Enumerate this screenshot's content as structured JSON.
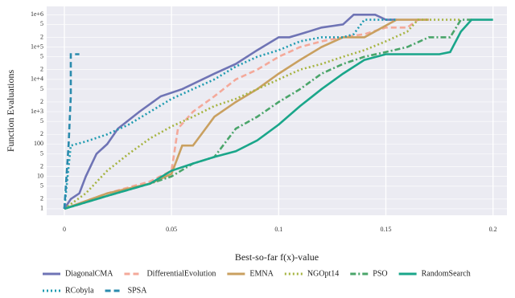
{
  "chart_data": {
    "type": "line",
    "x_label": "Best-so-far f(x)-value",
    "y_label": "Function Evaluations",
    "log_y": true,
    "grid": true,
    "legend": "bottom",
    "xlim": [
      -0.00825,
      0.2065
    ],
    "ylim": [
      0.63,
      1800000
    ],
    "xticks": [
      0,
      0.05,
      0.1,
      0.15,
      0.2
    ],
    "yticks": [
      1,
      2,
      5,
      10,
      {
        "value": 20,
        "label": "2"
      },
      {
        "value": 50,
        "label": "5"
      },
      100,
      {
        "value": 200,
        "label": "2"
      },
      {
        "value": 500,
        "label": "5"
      },
      {
        "value": 1000,
        "label": "1e+3"
      },
      {
        "value": 2000,
        "label": "2"
      },
      {
        "value": 5000,
        "label": "5"
      },
      {
        "value": 10000,
        "label": "1e+4"
      },
      {
        "value": 20000,
        "label": "2"
      },
      {
        "value": 50000,
        "label": "5"
      },
      {
        "value": 100000,
        "label": "1e+5"
      },
      {
        "value": 200000,
        "label": "2"
      },
      {
        "value": 500000,
        "label": "5"
      },
      {
        "value": 1000000,
        "label": "1e+6"
      }
    ],
    "series": [
      {
        "name": "DiagonalCMA",
        "color": "#6f74b5",
        "dash": "solid",
        "x": [
          0,
          0.003,
          0.007,
          0.01,
          0.015,
          0.02,
          0.025,
          0.035,
          0.045,
          0.055,
          0.07,
          0.08,
          0.09,
          0.1,
          0.105,
          0.11,
          0.12,
          0.13,
          0.135,
          0.145,
          0.15,
          0.155
        ],
        "values": [
          1,
          2,
          3,
          10,
          50,
          100,
          300,
          1000,
          3000,
          5000,
          15000,
          30000,
          80000,
          200000,
          200000,
          250000,
          400000,
          500000,
          1000000,
          1000000,
          700000,
          700000
        ]
      },
      {
        "name": "DifferentialEvolution",
        "color": "#f4a99a",
        "dash": "dash",
        "x": [
          0,
          0.02,
          0.04,
          0.05,
          0.053,
          0.06,
          0.07,
          0.08,
          0.09,
          0.1,
          0.11,
          0.12,
          0.13,
          0.14,
          0.15,
          0.16,
          0.165,
          0.17
        ],
        "values": [
          1,
          3,
          7,
          15,
          300,
          1000,
          3000,
          10000,
          20000,
          50000,
          100000,
          150000,
          200000,
          250000,
          400000,
          400000,
          700000,
          700000
        ]
      },
      {
        "name": "EMNA",
        "color": "#c9a060",
        "dash": "solid",
        "x": [
          0,
          0.02,
          0.04,
          0.05,
          0.055,
          0.06,
          0.065,
          0.07,
          0.08,
          0.09,
          0.1,
          0.11,
          0.12,
          0.13,
          0.14,
          0.155,
          0.17
        ],
        "values": [
          1,
          3,
          6,
          12,
          90,
          90,
          250,
          700,
          2000,
          5000,
          15000,
          40000,
          100000,
          200000,
          200000,
          700000,
          700000
        ]
      },
      {
        "name": "NGOpt14",
        "color": "#a6b441",
        "dash": "dot",
        "x": [
          0,
          0.01,
          0.02,
          0.03,
          0.04,
          0.05,
          0.06,
          0.07,
          0.08,
          0.09,
          0.1,
          0.11,
          0.12,
          0.13,
          0.14,
          0.15,
          0.16,
          0.165,
          0.185
        ],
        "values": [
          1,
          3,
          15,
          50,
          150,
          350,
          700,
          1500,
          2500,
          5000,
          10000,
          20000,
          30000,
          50000,
          80000,
          150000,
          300000,
          700000,
          700000
        ]
      },
      {
        "name": "PSO",
        "color": "#4aa56a",
        "dash": "dashdot",
        "x": [
          0,
          0.02,
          0.04,
          0.05,
          0.06,
          0.07,
          0.08,
          0.09,
          0.1,
          0.11,
          0.12,
          0.13,
          0.14,
          0.15,
          0.16,
          0.17,
          0.18,
          0.185,
          0.19
        ],
        "values": [
          1,
          2.5,
          6,
          10,
          25,
          40,
          300,
          700,
          2000,
          5000,
          15000,
          30000,
          50000,
          70000,
          100000,
          200000,
          200000,
          700000,
          700000
        ]
      },
      {
        "name": "RandomSearch",
        "color": "#1aa68a",
        "dash": "solid",
        "x": [
          0,
          0.02,
          0.04,
          0.05,
          0.06,
          0.07,
          0.08,
          0.09,
          0.1,
          0.11,
          0.12,
          0.13,
          0.14,
          0.15,
          0.175,
          0.18,
          0.185,
          0.19,
          0.2
        ],
        "values": [
          1,
          2.5,
          6,
          15,
          25,
          40,
          60,
          130,
          400,
          1500,
          5000,
          15000,
          40000,
          60000,
          60000,
          70000,
          300000,
          700000,
          700000
        ]
      },
      {
        "name": "RCobyla",
        "color": "#1f9bb0",
        "dash": "dot",
        "x": [
          0,
          0.003,
          0.01,
          0.02,
          0.03,
          0.04,
          0.05,
          0.06,
          0.07,
          0.08,
          0.09,
          0.1,
          0.11,
          0.12,
          0.13,
          0.135,
          0.14,
          0.155
        ],
        "values": [
          1,
          90,
          120,
          200,
          400,
          1000,
          2500,
          5000,
          10000,
          25000,
          50000,
          80000,
          150000,
          200000,
          200000,
          250000,
          700000,
          700000
        ]
      },
      {
        "name": "SPSA",
        "color": "#2a8bad",
        "dash": "dash",
        "x": [
          0,
          0.001,
          0.002,
          0.003,
          0.003,
          0.007
        ],
        "values": [
          1,
          10,
          100,
          3000,
          60000,
          60000
        ]
      }
    ]
  }
}
